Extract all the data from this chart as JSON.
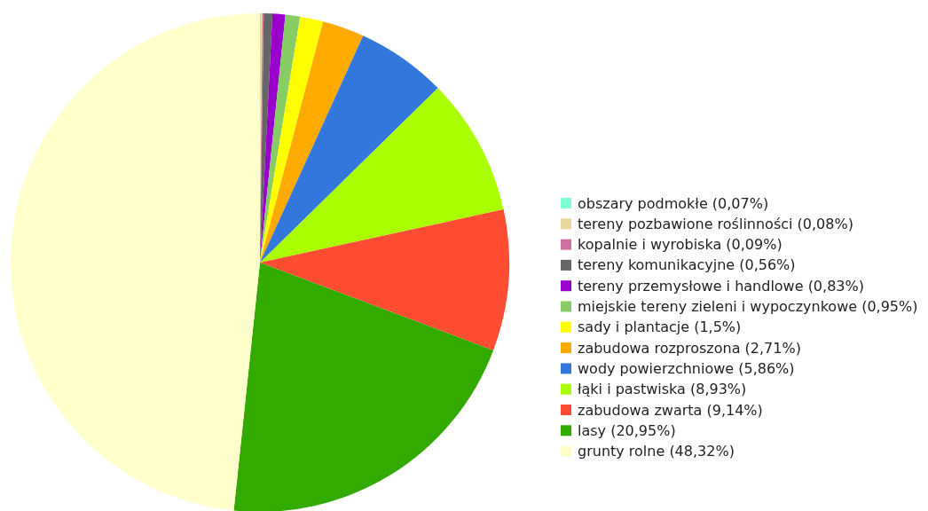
{
  "chart_data": {
    "type": "pie",
    "categories": [
      "obszary podmokłe (0,07%)",
      "tereny pozbawione roślinności (0,08%)",
      "kopalnie i wyrobiska (0,09%)",
      "tereny komunikacyjne (0,56%)",
      "tereny przemysłowe i handlowe (0,83%)",
      "miejskie tereny zieleni i wypoczynkowe (0,95%)",
      "sady i plantacje (1,5%)",
      "zabudowa rozproszona (2,71%)",
      "wody powierzchniowe (5,86%)",
      "łąki i pastwiska (8,93%)",
      "zabudowa zwarta (9,14%)",
      "lasy (20,95%)",
      "grunty rolne (48,32%)"
    ],
    "values": [
      0.07,
      0.08,
      0.09,
      0.56,
      0.83,
      0.95,
      1.5,
      2.71,
      5.86,
      8.93,
      9.14,
      20.95,
      48.32
    ],
    "colors": [
      "#7fffd4",
      "#e8d8a0",
      "#d070a0",
      "#666666",
      "#9900cc",
      "#88cc66",
      "#ffff00",
      "#ffaa00",
      "#3377dd",
      "#aaff00",
      "#ff4d33",
      "#33aa00",
      "#ffffcc"
    ],
    "legend": "right"
  }
}
